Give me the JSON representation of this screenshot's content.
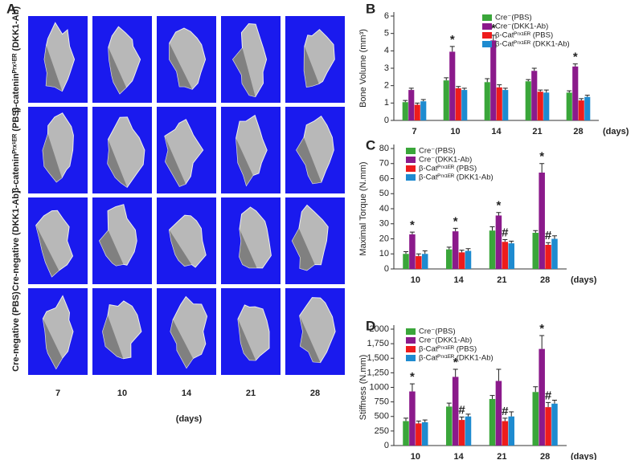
{
  "panel_a": {
    "label": "A",
    "rows": [
      "β-cateninᴾʳˣ¹ᴱᴿ (DKK1-Ab)",
      "β-cateninᴾʳˣ¹ᴱᴿ (PBS)",
      "Cre-negative (DKK1-Ab)",
      "Cre-negative (PBS)"
    ],
    "columns": [
      "7",
      "10",
      "14",
      "21",
      "28"
    ],
    "x_label": "(days)"
  },
  "chart_data": [
    {
      "type": "bar",
      "panel_label": "B",
      "y_label": "Bone Volume (mm³)",
      "x_label": "(days)",
      "categories": [
        "7",
        "10",
        "14",
        "21",
        "28"
      ],
      "ylim": [
        0,
        6
      ],
      "yticks": [
        0,
        1,
        2,
        3,
        4,
        5,
        6
      ],
      "series": [
        {
          "name": "Cre⁻(PBS)",
          "color": "#3aa63a",
          "values": [
            1.05,
            2.3,
            2.2,
            2.25,
            1.6
          ],
          "errors": [
            0.1,
            0.15,
            0.2,
            0.1,
            0.1
          ],
          "labels": [
            null,
            null,
            null,
            null,
            null
          ]
        },
        {
          "name": "Cre⁻(DKK1-Ab)",
          "color": "#8b1a8b",
          "values": [
            1.75,
            3.95,
            4.6,
            2.85,
            3.1
          ],
          "errors": [
            0.1,
            0.3,
            0.3,
            0.15,
            0.15
          ],
          "labels": [
            null,
            "*",
            "*",
            null,
            "*"
          ]
        },
        {
          "name": "β-Catᴾʳˣ¹ᴱᴿ (PBS)",
          "color": "#ee1c1c",
          "values": [
            0.9,
            1.85,
            1.9,
            1.65,
            1.15
          ],
          "errors": [
            0.1,
            0.1,
            0.15,
            0.1,
            0.1
          ],
          "labels": [
            null,
            null,
            null,
            null,
            null
          ]
        },
        {
          "name": "β-Catᴾʳˣ¹ᴱᴿ (DKK1-Ab)",
          "color": "#1e8bd0",
          "values": [
            1.1,
            1.75,
            1.75,
            1.6,
            1.35
          ],
          "errors": [
            0.1,
            0.1,
            0.1,
            0.15,
            0.1
          ],
          "labels": [
            null,
            null,
            null,
            null,
            null
          ]
        }
      ]
    },
    {
      "type": "bar",
      "panel_label": "C",
      "y_label": "Maximal Torque (N.mm)",
      "x_label": "(days)",
      "categories": [
        "10",
        "14",
        "21",
        "28"
      ],
      "ylim": [
        0,
        80
      ],
      "yticks": [
        0,
        10,
        20,
        30,
        40,
        50,
        60,
        70,
        80
      ],
      "series": [
        {
          "name": "Cre⁻(PBS)",
          "color": "#3aa63a",
          "values": [
            10,
            13,
            25.5,
            24
          ],
          "errors": [
            1.5,
            1.5,
            2.5,
            1.5
          ],
          "labels": [
            null,
            null,
            null,
            null
          ]
        },
        {
          "name": "Cre⁻(DKK1-Ab)",
          "color": "#8b1a8b",
          "values": [
            23,
            25,
            35.5,
            64
          ],
          "errors": [
            1.5,
            2,
            2,
            6
          ],
          "labels": [
            "*",
            "*",
            "*",
            "*"
          ]
        },
        {
          "name": "β-Catᴾʳˣ¹ᴱᴿ (PBS)",
          "color": "#ee1c1c",
          "values": [
            8.5,
            11,
            18,
            16
          ],
          "errors": [
            1.5,
            1.5,
            1.5,
            1.5
          ],
          "labels": [
            null,
            null,
            "#",
            "#"
          ]
        },
        {
          "name": "β-Catᴾʳˣ¹ᴱᴿ (DKK1-Ab)",
          "color": "#1e8bd0",
          "values": [
            10,
            12,
            17,
            20
          ],
          "errors": [
            2,
            1.5,
            1.5,
            2
          ],
          "labels": [
            null,
            null,
            null,
            null
          ]
        }
      ]
    },
    {
      "type": "bar",
      "panel_label": "D",
      "y_label": "Stiffness (N.mm)",
      "x_label": "(days)",
      "categories": [
        "10",
        "14",
        "21",
        "28"
      ],
      "ylim": [
        0,
        2000
      ],
      "yticks": [
        0,
        250,
        500,
        750,
        1000,
        {
          "value": 1250,
          "label": "1,250"
        },
        {
          "value": 1500,
          "label": "1,500"
        },
        {
          "value": 1750,
          "label": "1,750"
        },
        2000
      ],
      "series": [
        {
          "name": "Cre⁻(PBS)",
          "color": "#3aa63a",
          "values": [
            420,
            670,
            800,
            920
          ],
          "errors": [
            50,
            60,
            60,
            90
          ],
          "labels": [
            null,
            null,
            null,
            null
          ]
        },
        {
          "name": "Cre⁻(DKK1-Ab)",
          "color": "#8b1a8b",
          "values": [
            930,
            1180,
            1110,
            1660
          ],
          "errors": [
            130,
            130,
            200,
            230
          ],
          "labels": [
            "*",
            "*",
            null,
            "*"
          ]
        },
        {
          "name": "β-Catᴾʳˣ¹ᴱᴿ (PBS)",
          "color": "#ee1c1c",
          "values": [
            380,
            440,
            420,
            660
          ],
          "errors": [
            40,
            50,
            50,
            80
          ],
          "labels": [
            null,
            "#",
            "#",
            "#"
          ]
        },
        {
          "name": "β-Catᴾʳˣ¹ᴱᴿ (DKK1-Ab)",
          "color": "#1e8bd0",
          "values": [
            400,
            500,
            500,
            720
          ],
          "errors": [
            40,
            40,
            80,
            60
          ],
          "labels": [
            null,
            null,
            null,
            null
          ]
        }
      ]
    }
  ]
}
